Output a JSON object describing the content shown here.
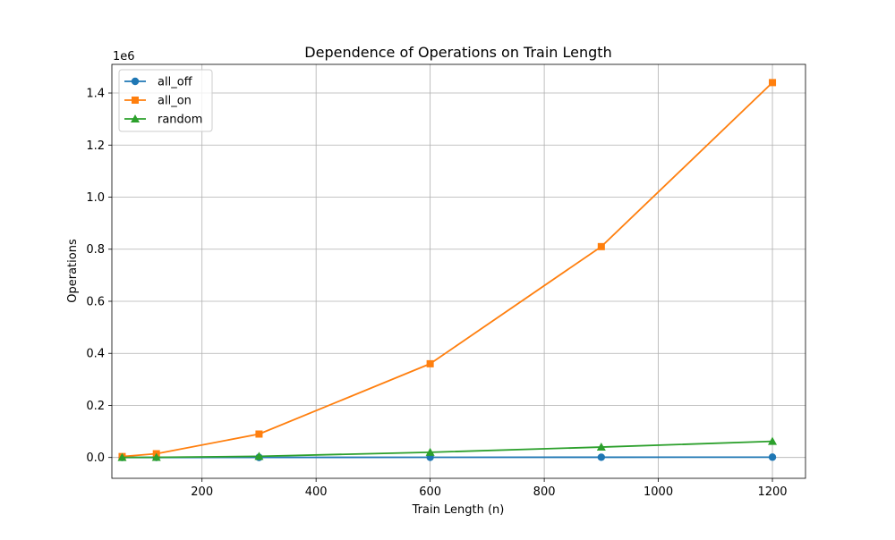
{
  "chart_data": {
    "type": "line",
    "title": "Dependence of Operations on Train Length",
    "xlabel": "Train Length (n)",
    "ylabel": "Operations",
    "y_multiplier_label": "1e6",
    "xlim": [
      42,
      1258
    ],
    "ylim": [
      -80000,
      1510000
    ],
    "x_scale": "linear",
    "y_scale": "linear",
    "grid": true,
    "legend_position": "upper-left",
    "x": [
      60,
      120,
      300,
      600,
      900,
      1200
    ],
    "x_ticks": [
      200,
      400,
      600,
      800,
      1000,
      1200
    ],
    "x_tick_labels": [
      "200",
      "400",
      "600",
      "800",
      "1000",
      "1200"
    ],
    "y_ticks": [
      0,
      200000,
      400000,
      600000,
      800000,
      1000000,
      1200000,
      1400000
    ],
    "y_tick_labels": [
      "0.0",
      "0.2",
      "0.4",
      "0.6",
      "0.8",
      "1.0",
      "1.2",
      "1.4"
    ],
    "series": [
      {
        "name": "all_off",
        "color": "#1f77b4",
        "marker": "circle",
        "values": [
          60,
          120,
          300,
          600,
          900,
          1200
        ]
      },
      {
        "name": "all_on",
        "color": "#ff7f0e",
        "marker": "square",
        "values": [
          3600,
          14400,
          90000,
          360000,
          810000,
          1440000
        ]
      },
      {
        "name": "random",
        "color": "#2ca02c",
        "marker": "triangle",
        "values": [
          180,
          720,
          4500,
          20000,
          40000,
          62000
        ]
      }
    ]
  }
}
